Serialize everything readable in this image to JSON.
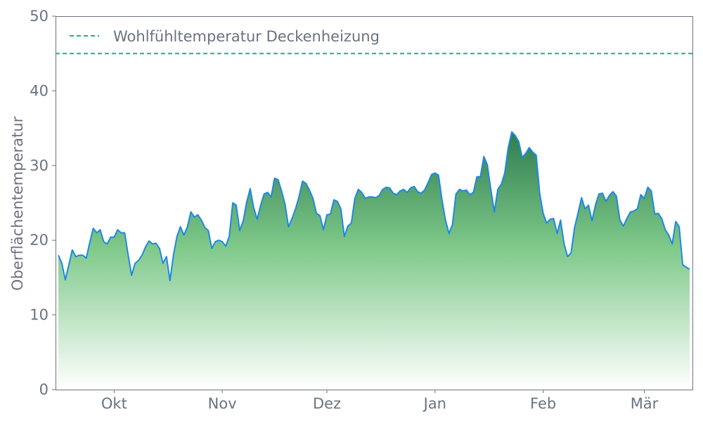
{
  "chart_data": {
    "type": "area",
    "title": "",
    "xlabel": "",
    "ylabel": "Oberflächentemperatur",
    "ylim": [
      0,
      50
    ],
    "yticks": [
      0,
      10,
      20,
      30,
      40,
      50
    ],
    "grid": false,
    "legend_placement": "top-left",
    "xticks": [
      {
        "date": "10-01",
        "label": "Okt"
      },
      {
        "date": "11-01",
        "label": "Nov"
      },
      {
        "date": "12-01",
        "label": "Dez"
      },
      {
        "date": "01-01",
        "label": "Jan"
      },
      {
        "date": "02-01",
        "label": "Feb"
      },
      {
        "date": "03-01",
        "label": "Mär"
      }
    ],
    "reference_line": {
      "name": "Wohlfühltemperatur Deckenheizung",
      "y": 45,
      "color": "#12b886",
      "style": "dashed"
    },
    "colors": {
      "line": "#1e88e5",
      "fill_top": "#2e7d4f",
      "fill_bottom": "#ffffff",
      "axis": "#6b7280",
      "text": "#6b7280"
    },
    "x": [
      "09-15",
      "09-16",
      "09-17",
      "09-18",
      "09-19",
      "09-20",
      "09-21",
      "09-22",
      "09-23",
      "09-24",
      "09-25",
      "09-26",
      "09-27",
      "09-28",
      "09-29",
      "09-30",
      "10-01",
      "10-02",
      "10-03",
      "10-04",
      "10-05",
      "10-06",
      "10-07",
      "10-08",
      "10-09",
      "10-10",
      "10-11",
      "10-12",
      "10-13",
      "10-14",
      "10-15",
      "10-16",
      "10-17",
      "10-18",
      "10-19",
      "10-20",
      "10-21",
      "10-22",
      "10-23",
      "10-24",
      "10-25",
      "10-26",
      "10-27",
      "10-28",
      "10-29",
      "10-30",
      "10-31",
      "11-01",
      "11-02",
      "11-03",
      "11-04",
      "11-05",
      "11-06",
      "11-07",
      "11-08",
      "11-09",
      "11-10",
      "11-11",
      "11-12",
      "11-13",
      "11-14",
      "11-15",
      "11-16",
      "11-17",
      "11-18",
      "11-19",
      "11-20",
      "11-21",
      "11-22",
      "11-23",
      "11-24",
      "11-25",
      "11-26",
      "11-27",
      "11-28",
      "11-29",
      "11-30",
      "12-01",
      "12-02",
      "12-03",
      "12-04",
      "12-05",
      "12-06",
      "12-07",
      "12-08",
      "12-09",
      "12-10",
      "12-11",
      "12-12",
      "12-13",
      "12-14",
      "12-15",
      "12-16",
      "12-17",
      "12-18",
      "12-19",
      "12-20",
      "12-21",
      "12-22",
      "12-23",
      "12-24",
      "12-25",
      "12-26",
      "12-27",
      "12-28",
      "12-29",
      "12-30",
      "12-31",
      "01-01",
      "01-02",
      "01-03",
      "01-04",
      "01-05",
      "01-06",
      "01-07",
      "01-08",
      "01-09",
      "01-10",
      "01-11",
      "01-12",
      "01-13",
      "01-14",
      "01-15",
      "01-16",
      "01-17",
      "01-18",
      "01-19",
      "01-20",
      "01-21",
      "01-22",
      "01-23",
      "01-24",
      "01-25",
      "01-26",
      "01-27",
      "01-28",
      "01-29",
      "01-30",
      "01-31",
      "02-01",
      "02-02",
      "02-03",
      "02-04",
      "02-05",
      "02-06",
      "02-07",
      "02-08",
      "02-09",
      "02-10",
      "02-11",
      "02-12",
      "02-13",
      "02-14",
      "02-15",
      "02-16",
      "02-17",
      "02-18",
      "02-19",
      "02-20",
      "02-21",
      "02-22",
      "02-23",
      "02-24",
      "02-25",
      "02-26",
      "02-27",
      "02-28",
      "02-29",
      "03-01",
      "03-02",
      "03-03",
      "03-04",
      "03-05",
      "03-06",
      "03-07",
      "03-08",
      "03-09",
      "03-10",
      "03-11",
      "03-12",
      "03-13",
      "03-14"
    ],
    "values": [
      18.0,
      16.9,
      14.7,
      16.7,
      18.7,
      17.8,
      18.0,
      18.0,
      17.6,
      19.7,
      21.6,
      21.0,
      21.4,
      19.8,
      19.5,
      20.4,
      20.4,
      21.4,
      21.0,
      21.0,
      18.1,
      15.3,
      16.9,
      17.3,
      18.0,
      19.1,
      19.9,
      19.5,
      19.6,
      18.9,
      16.9,
      17.8,
      14.6,
      18.0,
      20.5,
      21.8,
      20.7,
      21.8,
      23.8,
      23.1,
      23.4,
      22.7,
      21.7,
      21.3,
      18.9,
      19.8,
      20.0,
      19.8,
      19.2,
      20.5,
      25.0,
      24.7,
      21.3,
      22.6,
      25.1,
      26.9,
      24.4,
      22.8,
      24.7,
      26.2,
      26.4,
      25.8,
      28.3,
      28.1,
      26.6,
      24.8,
      21.8,
      22.9,
      24.2,
      25.8,
      27.9,
      27.6,
      26.7,
      25.6,
      23.6,
      23.3,
      21.4,
      23.4,
      23.5,
      25.4,
      25.2,
      24.2,
      20.5,
      21.9,
      22.3,
      25.6,
      26.8,
      26.4,
      25.6,
      25.8,
      25.8,
      25.7,
      26.0,
      26.8,
      27.1,
      27.0,
      26.3,
      26.1,
      26.6,
      26.8,
      26.4,
      27.0,
      27.2,
      26.5,
      26.3,
      26.7,
      27.7,
      28.8,
      29.0,
      28.7,
      25.4,
      22.7,
      20.9,
      22.1,
      26.2,
      26.8,
      26.6,
      26.7,
      26.1,
      26.4,
      28.5,
      28.5,
      31.2,
      30.1,
      26.8,
      23.8,
      26.8,
      27.5,
      29.0,
      32.4,
      34.5,
      34.0,
      33.2,
      31.1,
      31.6,
      32.4,
      31.8,
      31.4,
      26.3,
      23.6,
      22.3,
      22.8,
      22.9,
      20.9,
      22.7,
      19.5,
      17.8,
      18.3,
      21.7,
      23.6,
      25.7,
      24.2,
      24.7,
      22.6,
      24.7,
      26.2,
      26.3,
      25.2,
      26.0,
      26.5,
      25.9,
      22.7,
      21.9,
      22.9,
      23.8,
      23.9,
      24.2,
      26.1,
      25.6,
      27.1,
      26.6,
      23.5,
      23.6,
      22.9,
      21.4,
      20.7,
      19.5,
      22.5,
      21.8,
      16.7,
      16.4,
      16.1
    ]
  }
}
